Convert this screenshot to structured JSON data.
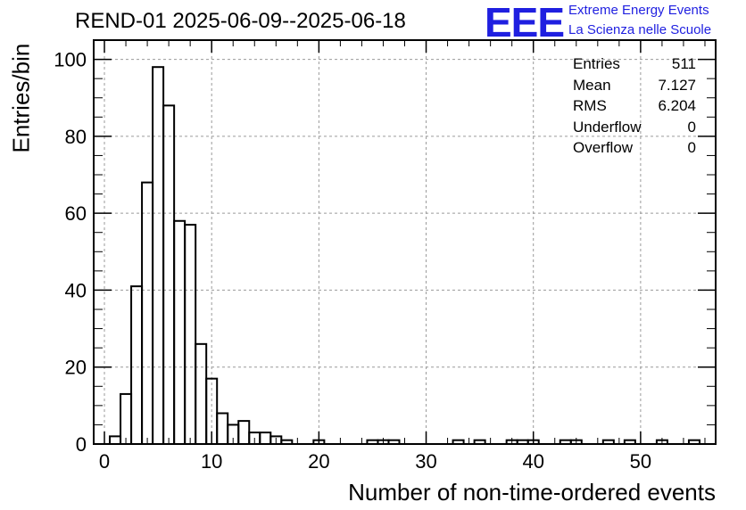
{
  "title": "REND-01 2025-06-09--2025-06-18",
  "logo": {
    "mark": "EEE",
    "line1": "Extreme Energy Events",
    "line2": "La Scienza nelle Scuole",
    "color": "#1f1fe0"
  },
  "stats": [
    {
      "label": "Entries",
      "value": "511"
    },
    {
      "label": "Mean",
      "value": "7.127"
    },
    {
      "label": "RMS",
      "value": "6.204"
    },
    {
      "label": "Underflow",
      "value": "0"
    },
    {
      "label": "Overflow",
      "value": "0"
    }
  ],
  "chart_data": {
    "type": "bar",
    "title": "REND-01 2025-06-09--2025-06-18",
    "xlabel": "Number of non-time-ordered events",
    "ylabel": "Entries/bin",
    "xlim": [
      -1,
      57
    ],
    "ylim": [
      0,
      105
    ],
    "bin_width": 1,
    "x_ticks": [
      0,
      10,
      20,
      30,
      40,
      50
    ],
    "y_ticks": [
      0,
      20,
      40,
      60,
      80,
      100
    ],
    "grid": true,
    "bins": [
      {
        "x": 1,
        "value": 2
      },
      {
        "x": 2,
        "value": 13
      },
      {
        "x": 3,
        "value": 41
      },
      {
        "x": 4,
        "value": 68
      },
      {
        "x": 5,
        "value": 98
      },
      {
        "x": 6,
        "value": 88
      },
      {
        "x": 7,
        "value": 58
      },
      {
        "x": 8,
        "value": 57
      },
      {
        "x": 9,
        "value": 26
      },
      {
        "x": 10,
        "value": 17
      },
      {
        "x": 11,
        "value": 8
      },
      {
        "x": 12,
        "value": 5
      },
      {
        "x": 13,
        "value": 6
      },
      {
        "x": 14,
        "value": 3
      },
      {
        "x": 15,
        "value": 3
      },
      {
        "x": 16,
        "value": 2
      },
      {
        "x": 17,
        "value": 1
      },
      {
        "x": 20,
        "value": 1
      },
      {
        "x": 25,
        "value": 1
      },
      {
        "x": 26,
        "value": 1
      },
      {
        "x": 27,
        "value": 1
      },
      {
        "x": 33,
        "value": 1
      },
      {
        "x": 35,
        "value": 1
      },
      {
        "x": 38,
        "value": 1
      },
      {
        "x": 39,
        "value": 1
      },
      {
        "x": 40,
        "value": 1
      },
      {
        "x": 43,
        "value": 1
      },
      {
        "x": 44,
        "value": 1
      },
      {
        "x": 47,
        "value": 1
      },
      {
        "x": 49,
        "value": 1
      },
      {
        "x": 52,
        "value": 1
      },
      {
        "x": 55,
        "value": 1
      }
    ]
  }
}
